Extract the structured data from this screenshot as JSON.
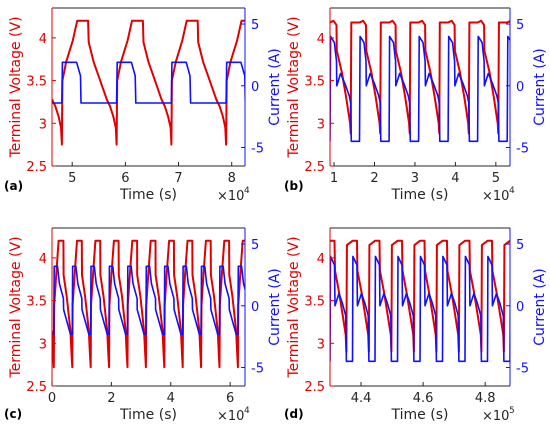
{
  "chart_data": [
    {
      "type": "line",
      "panel_label": "(a)",
      "xlabel": "Time (s)",
      "x_multiplier": "×10",
      "x_multiplier_exp": "4",
      "xlim": [
        4.62,
        8.25
      ],
      "xticks": [
        5,
        6,
        7,
        8
      ],
      "ylabel_left": "Terminal Voltage (V)",
      "ylim_left": [
        2.5,
        4.35
      ],
      "yticks_left": [
        2.5,
        3,
        3.5,
        4
      ],
      "ylabel_right": "Current (A)",
      "ylim_right": [
        -6.5,
        6.3
      ],
      "yticks_right": [
        -5,
        0,
        5
      ],
      "cycle": {
        "start": 4.62,
        "period": 1.03,
        "count": 4
      },
      "series": [
        {
          "name": "Terminal Voltage",
          "axis": "left",
          "color": "#e00000",
          "cycle_profile": [
            [
              0.0,
              3.28
            ],
            [
              0.06,
              3.2
            ],
            [
              0.12,
              3.08
            ],
            [
              0.165,
              2.95
            ],
            [
              0.18,
              2.75
            ],
            [
              0.19,
              3.5
            ],
            [
              0.26,
              3.72
            ],
            [
              0.38,
              3.97
            ],
            [
              0.46,
              4.2
            ],
            [
              0.66,
              4.2
            ],
            [
              0.67,
              3.95
            ],
            [
              0.76,
              3.72
            ],
            [
              0.88,
              3.5
            ],
            [
              1.0,
              3.28
            ]
          ]
        },
        {
          "name": "Current",
          "axis": "right",
          "color": "#1010ff",
          "cycle_profile": [
            [
              0.0,
              -1.4
            ],
            [
              0.18,
              -1.4
            ],
            [
              0.19,
              1.9
            ],
            [
              0.45,
              1.9
            ],
            [
              0.52,
              0.8
            ],
            [
              0.53,
              -1.4
            ],
            [
              1.0,
              -1.4
            ]
          ]
        }
      ]
    },
    {
      "type": "line",
      "panel_label": "(b)",
      "xlabel": "Time (s)",
      "x_multiplier": "×10",
      "x_multiplier_exp": "4",
      "xlim": [
        0.9,
        5.35
      ],
      "xticks": [
        1,
        2,
        3,
        4,
        5
      ],
      "ylabel_left": "Terminal Voltage (V)",
      "ylim_left": [
        2.5,
        4.35
      ],
      "yticks_left": [
        2.5,
        3,
        3.5,
        4
      ],
      "ylabel_right": "Current (A)",
      "ylim_right": [
        -6.5,
        6.3
      ],
      "yticks_right": [
        -5,
        0,
        5
      ],
      "cycle": {
        "start": 0.9,
        "period": 0.73,
        "count": 6
      },
      "series": [
        {
          "name": "Terminal Voltage",
          "axis": "left",
          "color": "#e00000",
          "cycle_profile": [
            [
              0.0,
              4.18
            ],
            [
              0.12,
              4.2
            ],
            [
              0.22,
              4.15
            ],
            [
              0.23,
              3.85
            ],
            [
              0.4,
              3.6
            ],
            [
              0.55,
              3.3
            ],
            [
              0.68,
              3.0
            ],
            [
              0.7,
              2.88
            ],
            [
              0.72,
              4.18
            ],
            [
              1.0,
              4.18
            ]
          ]
        },
        {
          "name": "Current",
          "axis": "right",
          "color": "#1010ff",
          "cycle_profile": [
            [
              0.0,
              -4.5
            ],
            [
              0.02,
              4.0
            ],
            [
              0.15,
              3.5
            ],
            [
              0.22,
              2.0
            ],
            [
              0.23,
              0.0
            ],
            [
              0.36,
              1.0
            ],
            [
              0.5,
              0.2
            ],
            [
              0.65,
              -0.8
            ],
            [
              0.7,
              -1.4
            ],
            [
              0.72,
              -4.5
            ],
            [
              1.0,
              -4.5
            ]
          ]
        }
      ]
    },
    {
      "type": "line",
      "panel_label": "(c)",
      "xlabel": "Time (s)",
      "x_multiplier": "×10",
      "x_multiplier_exp": "4",
      "xlim": [
        0,
        6.5
      ],
      "xticks": [
        0,
        2,
        4,
        6
      ],
      "ylabel_left": "Terminal Voltage (V)",
      "ylim_left": [
        2.5,
        4.35
      ],
      "yticks_left": [
        2.5,
        3,
        3.5,
        4
      ],
      "ylabel_right": "Current (A)",
      "ylim_right": [
        -6.5,
        6.3
      ],
      "yticks_right": [
        -5,
        0,
        5
      ],
      "cycle": {
        "start": 0.0,
        "period": 0.62,
        "count": 11
      },
      "series": [
        {
          "name": "Terminal Voltage",
          "axis": "left",
          "color": "#e00000",
          "cycle_profile": [
            [
              0.0,
              3.15
            ],
            [
              0.06,
              2.88
            ],
            [
              0.1,
              2.72
            ],
            [
              0.12,
              3.45
            ],
            [
              0.22,
              3.78
            ],
            [
              0.36,
              4.2
            ],
            [
              0.62,
              4.2
            ],
            [
              0.63,
              3.8
            ],
            [
              0.8,
              3.55
            ],
            [
              1.0,
              3.15
            ]
          ]
        },
        {
          "name": "Current",
          "axis": "right",
          "color": "#1010ff",
          "cycle_profile": [
            [
              0.0,
              -2.3
            ],
            [
              0.1,
              -2.3
            ],
            [
              0.12,
              3.2
            ],
            [
              0.3,
              3.2
            ],
            [
              0.4,
              1.8
            ],
            [
              0.62,
              0.6
            ],
            [
              0.63,
              -0.3
            ],
            [
              1.0,
              -2.3
            ]
          ]
        }
      ]
    },
    {
      "type": "line",
      "panel_label": "(d)",
      "xlabel": "Time (s)",
      "x_multiplier": "×10",
      "x_multiplier_exp": "5",
      "xlim": [
        4.3,
        4.88
      ],
      "xticks": [
        4.4,
        4.6,
        4.8
      ],
      "ylabel_left": "Terminal Voltage (V)",
      "ylim_left": [
        2.5,
        4.35
      ],
      "yticks_left": [
        2.5,
        3,
        3.5,
        4
      ],
      "ylabel_right": "Current (A)",
      "ylim_right": [
        -6.5,
        6.3
      ],
      "yticks_right": [
        -5,
        0,
        5
      ],
      "cycle": {
        "start": 4.3,
        "period": 0.0725,
        "count": 8
      },
      "series": [
        {
          "name": "Terminal Voltage",
          "axis": "left",
          "color": "#e00000",
          "cycle_profile": [
            [
              0.0,
              4.2
            ],
            [
              0.2,
              4.2
            ],
            [
              0.22,
              3.85
            ],
            [
              0.4,
              3.6
            ],
            [
              0.55,
              3.35
            ],
            [
              0.7,
              3.1
            ],
            [
              0.73,
              2.9
            ],
            [
              0.75,
              4.15
            ],
            [
              1.0,
              4.2
            ]
          ]
        },
        {
          "name": "Current",
          "axis": "right",
          "color": "#1010ff",
          "cycle_profile": [
            [
              0.0,
              -4.5
            ],
            [
              0.02,
              4.0
            ],
            [
              0.2,
              3.3
            ],
            [
              0.22,
              0.0
            ],
            [
              0.4,
              1.0
            ],
            [
              0.55,
              0.2
            ],
            [
              0.7,
              -0.8
            ],
            [
              0.73,
              -4.5
            ],
            [
              1.0,
              -4.5
            ]
          ]
        }
      ]
    }
  ]
}
